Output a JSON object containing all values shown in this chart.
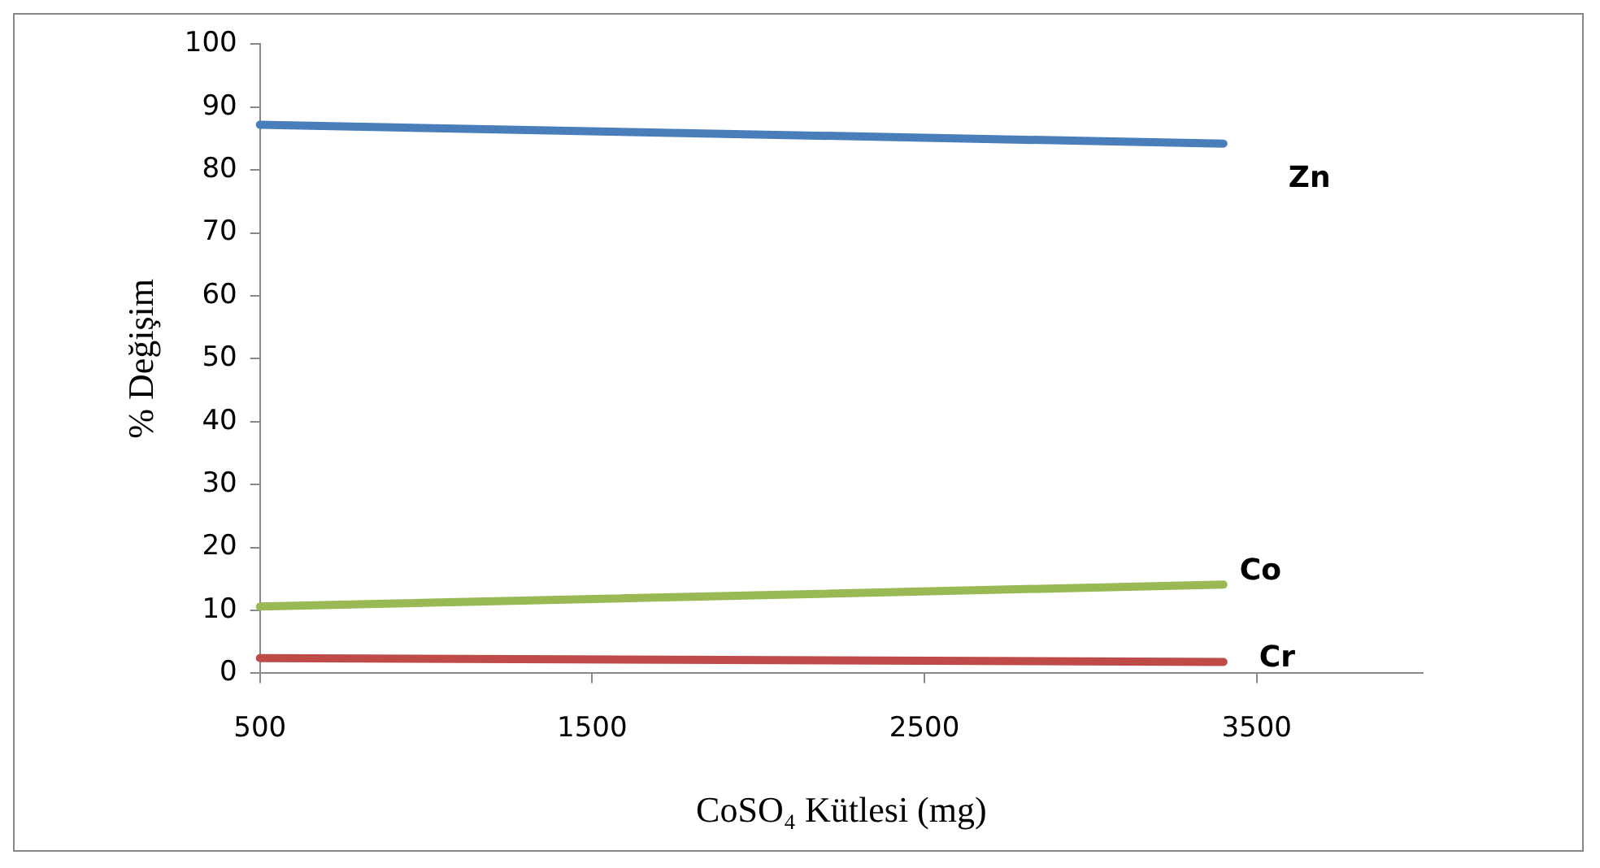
{
  "chart_data": {
    "type": "line",
    "xlabel": "CoSO₄ Kütlesi (mg)",
    "ylabel": "% Değişim",
    "xlim": [
      500,
      4000
    ],
    "xticks": [
      500,
      1500,
      2500,
      3500
    ],
    "ylim": [
      0,
      100
    ],
    "yticks": [
      0,
      10,
      20,
      30,
      40,
      50,
      60,
      70,
      80,
      90,
      100
    ],
    "x": [
      500,
      3400
    ],
    "grid": false,
    "legend": false,
    "marker": "none",
    "line_style": "solid",
    "series": [
      {
        "name": "Zn",
        "color": "#4a7ebb",
        "values": [
          87.2,
          84.2
        ]
      },
      {
        "name": "Co",
        "color": "#98b954",
        "values": [
          10.6,
          14.1
        ]
      },
      {
        "name": "Cr",
        "color": "#be4b48",
        "values": [
          2.4,
          1.8
        ]
      }
    ]
  }
}
